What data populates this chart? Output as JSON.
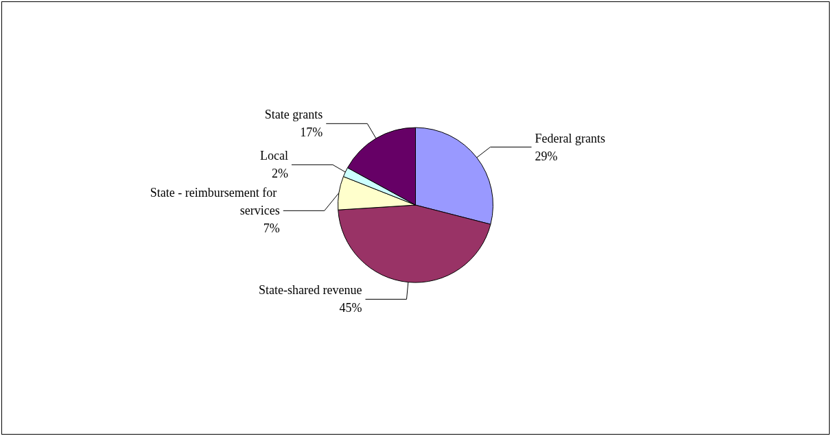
{
  "chart_data": {
    "type": "pie",
    "categories": [
      "Federal grants",
      "State-shared revenue",
      "State - reimbursement for services",
      "Local",
      "State grants"
    ],
    "values": [
      29,
      45,
      7,
      2,
      17
    ],
    "value_labels": [
      "29%",
      "45%",
      "7%",
      "2%",
      "17%"
    ],
    "colors": [
      "#9999ff",
      "#993366",
      "#ffffcc",
      "#ccffff",
      "#660066"
    ],
    "legend": false
  }
}
